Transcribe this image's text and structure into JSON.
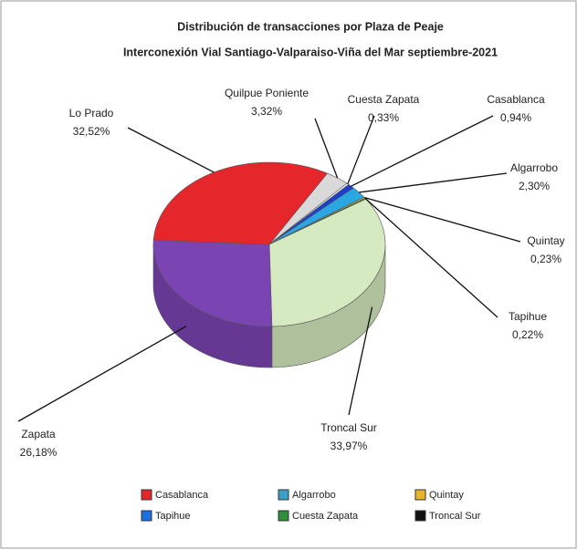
{
  "chart_data": {
    "type": "pie",
    "title": "Distribución de transacciones por Plaza de Peaje",
    "subtitle": "Interconexión Vial Santiago-Valparaiso-Viña  del Mar septiembre-2021",
    "categories": [
      "Quilpue Poniente",
      "Cuesta Zapata",
      "Casablanca",
      "Algarrobo",
      "Quintay",
      "Tapihue",
      "Troncal Sur",
      "Zapata",
      "Lo Prado"
    ],
    "values": [
      3.32,
      0.33,
      0.94,
      2.3,
      0.23,
      0.22,
      33.97,
      26.18,
      32.52
    ],
    "value_labels": [
      "3,32%",
      "0,33%",
      "0,94%",
      "2,30%",
      "0,23%",
      "0,22%",
      "33,97%",
      "26,18%",
      "32,52%"
    ],
    "colors": [
      "#d9d9d9",
      "#f4f4f4",
      "#1c3fd0",
      "#2aa6e0",
      "#e8c23a",
      "#2f8f3a",
      "#d5eac0",
      "#7a44b3",
      "#e5262b"
    ],
    "legend": [
      {
        "name": "Casablanca",
        "color": "#e5262b"
      },
      {
        "name": "Algarrobo",
        "color": "#3aa0c8"
      },
      {
        "name": "Quintay",
        "color": "#e8b52a"
      },
      {
        "name": "Tapihue",
        "color": "#1c6fe0"
      },
      {
        "name": "Cuesta Zapata",
        "color": "#2f8f3a"
      },
      {
        "name": "Troncal Sur",
        "color": "#111111"
      }
    ]
  }
}
